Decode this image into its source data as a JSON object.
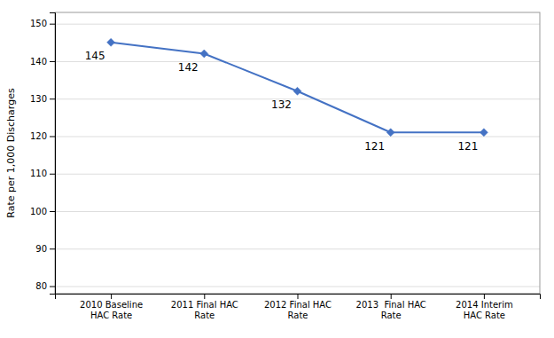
{
  "chart_data": {
    "type": "line",
    "categories": [
      "2010 Baseline\nHAC Rate",
      "2011 Final HAC\nRate",
      "2012 Final HAC\nRate",
      "2013  Final HAC\nRate",
      "2014 Interim\nHAC Rate"
    ],
    "values": [
      145,
      142,
      132,
      121,
      121
    ],
    "color": "#4472C4",
    "marker": "diamond",
    "ylabel": "Rate per 1,000 Discharges",
    "ylim": [
      78,
      153
    ],
    "yticks": [
      80,
      90,
      100,
      110,
      120,
      130,
      140,
      150
    ],
    "grid": true,
    "data_labels": true
  }
}
